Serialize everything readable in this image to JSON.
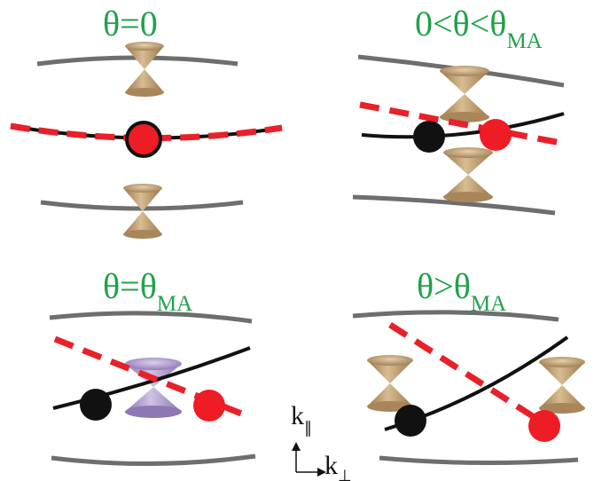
{
  "colors": {
    "title_green": "#1fa24a",
    "band_gray": "#6e6e6e",
    "black_line": "#111111",
    "red_dashed": "#e8202a",
    "red_dot": "#ee1c24",
    "cone_tan": "#b8946a",
    "cone_purple": "#9e86c2"
  },
  "panels": [
    {
      "title_main": "θ=0",
      "title_sub": ""
    },
    {
      "title_main": "0<θ<θ",
      "title_sub": "MA"
    },
    {
      "title_main": "θ=θ",
      "title_sub": "MA"
    },
    {
      "title_main": "θ>θ",
      "title_sub": "MA"
    }
  ],
  "axes": {
    "k_parallel_main": "k",
    "k_parallel_sub": "∥",
    "k_perp_main": "k",
    "k_perp_sub": "⊥"
  }
}
